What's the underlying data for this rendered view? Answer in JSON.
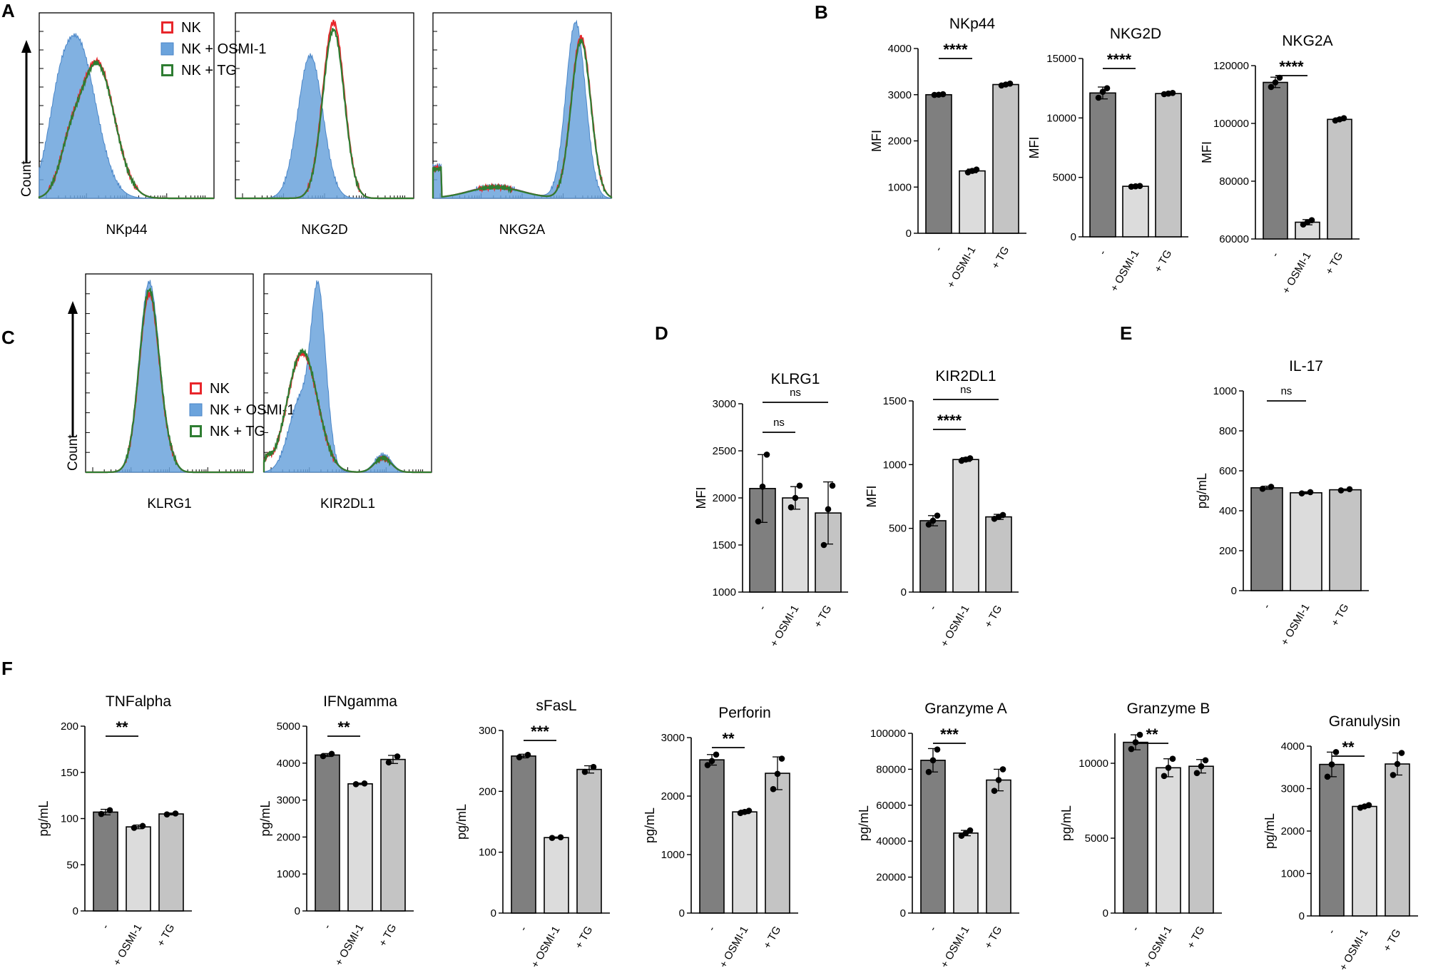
{
  "panel_labels": {
    "A": "A",
    "B": "B",
    "C": "C",
    "D": "D",
    "E": "E",
    "F": "F"
  },
  "histogram_common": {
    "y_label": "Count",
    "legend": [
      {
        "label": "NK",
        "color": "#e8262b",
        "type": "outline"
      },
      {
        "label": "NK + OSMI-1",
        "color": "#6ba3dc",
        "type": "filled"
      },
      {
        "label": "NK + TG",
        "color": "#2e7d32",
        "type": "outline"
      }
    ]
  },
  "categories": [
    "-",
    "+ OSMI-1",
    "+ TG"
  ],
  "colors": {
    "bar_dark": "#7f7f7f",
    "bar_light": "#dcdcdc",
    "bar_mid": "#c4c4c4",
    "fill_blue": "#6ba3dc",
    "red": "#e8262b",
    "green": "#2e7d32"
  },
  "chart_data": [
    {
      "id": "A1",
      "panel": "A",
      "type": "histogram",
      "xlabel": "NKp44",
      "title": "",
      "ylabel": "Count",
      "series": [
        {
          "name": "NK",
          "peak_x": 0.33,
          "peak_height": 0.74
        },
        {
          "name": "NK + OSMI-1",
          "peak_x": 0.22,
          "peak_height": 0.88
        },
        {
          "name": "NK + TG",
          "peak_x": 0.33,
          "peak_height": 0.73
        }
      ]
    },
    {
      "id": "A2",
      "panel": "A",
      "type": "histogram",
      "xlabel": "NKG2D",
      "title": "",
      "series": [
        {
          "name": "NK",
          "peak_x": 0.55,
          "peak_height": 0.95
        },
        {
          "name": "NK + OSMI-1",
          "peak_x": 0.42,
          "peak_height": 0.77
        },
        {
          "name": "NK + TG",
          "peak_x": 0.55,
          "peak_height": 0.91
        }
      ]
    },
    {
      "id": "A3",
      "panel": "A",
      "type": "histogram",
      "xlabel": "NKG2A",
      "title": "",
      "series": [
        {
          "name": "NK",
          "peak_x": 0.83,
          "peak_height": 0.87
        },
        {
          "name": "NK + OSMI-1",
          "peak_x": 0.8,
          "peak_height": 0.95
        },
        {
          "name": "NK + TG",
          "peak_x": 0.83,
          "peak_height": 0.85
        }
      ]
    },
    {
      "id": "B1",
      "panel": "B",
      "type": "bar",
      "title": "NKp44",
      "ylabel": "MFI",
      "ylim": [
        0,
        4000
      ],
      "yticks": [
        0,
        1000,
        2000,
        3000,
        4000
      ],
      "values": [
        3000,
        1350,
        3220
      ],
      "errors": [
        20,
        40,
        25
      ],
      "points": [
        [
          2995,
          3000,
          3010
        ],
        [
          1320,
          1350,
          1380
        ],
        [
          3200,
          3220,
          3240
        ]
      ],
      "sig": [
        {
          "from": 0,
          "to": 1,
          "text": "****"
        }
      ]
    },
    {
      "id": "B2",
      "panel": "B",
      "type": "bar",
      "title": "NKG2D",
      "ylabel": "MFI",
      "ylim": [
        0,
        15000
      ],
      "yticks": [
        0,
        5000,
        10000,
        15000
      ],
      "values": [
        12100,
        4250,
        12050
      ],
      "errors": [
        500,
        60,
        60
      ],
      "points": [
        [
          11700,
          12200,
          12500
        ],
        [
          4220,
          4250,
          4280
        ],
        [
          12000,
          12050,
          12100
        ]
      ],
      "sig": [
        {
          "from": 0,
          "to": 1,
          "text": "****"
        }
      ]
    },
    {
      "id": "B3",
      "panel": "B",
      "type": "bar",
      "title": "NKG2A",
      "ylabel": "MFI",
      "ylim": [
        60000,
        120000
      ],
      "yticks": [
        60000,
        80000,
        100000,
        120000
      ],
      "values": [
        114200,
        65800,
        101400
      ],
      "errors": [
        1800,
        900,
        500
      ],
      "points": [
        [
          112600,
          114200,
          115800
        ],
        [
          65000,
          65800,
          66500
        ],
        [
          101000,
          101400,
          101800
        ]
      ],
      "sig": [
        {
          "from": 0,
          "to": 1,
          "text": "****"
        }
      ]
    },
    {
      "id": "C1",
      "panel": "C",
      "type": "histogram",
      "xlabel": "KLRG1",
      "title": "",
      "ylabel": "Count",
      "series": [
        {
          "name": "NK",
          "peak_x": 0.38,
          "peak_height": 0.9
        },
        {
          "name": "NK + OSMI-1",
          "peak_x": 0.38,
          "peak_height": 0.96
        },
        {
          "name": "NK + TG",
          "peak_x": 0.38,
          "peak_height": 0.92
        }
      ]
    },
    {
      "id": "C2",
      "panel": "C",
      "type": "histogram",
      "xlabel": "KIR2DL1",
      "title": "",
      "series": [
        {
          "name": "NK",
          "peak_x": 0.24,
          "peak_height": 0.6
        },
        {
          "name": "NK + OSMI-1",
          "peak_x": 0.31,
          "peak_height": 0.96
        },
        {
          "name": "NK + TG",
          "peak_x": 0.24,
          "peak_height": 0.61
        }
      ]
    },
    {
      "id": "D1",
      "panel": "D",
      "type": "bar",
      "title": "KLRG1",
      "ylabel": "MFI",
      "ylim": [
        1000,
        3000
      ],
      "yticks": [
        1000,
        1500,
        2000,
        2500,
        3000
      ],
      "values": [
        2100,
        2000,
        1840
      ],
      "errors": [
        360,
        120,
        330
      ],
      "points": [
        [
          1750,
          2120,
          2460
        ],
        [
          1900,
          2000,
          2130
        ],
        [
          1500,
          1880,
          2130
        ]
      ],
      "sig": [
        {
          "from": 0,
          "to": 1,
          "text": "ns"
        },
        {
          "from": 0,
          "to": 2,
          "text": "ns"
        }
      ]
    },
    {
      "id": "D2",
      "panel": "D",
      "type": "bar",
      "title": "KIR2DL1",
      "ylabel": "MFI",
      "ylim": [
        0,
        1500
      ],
      "yticks": [
        0,
        500,
        1000,
        1500
      ],
      "values": [
        560,
        1040,
        590
      ],
      "errors": [
        40,
        15,
        20
      ],
      "points": [
        [
          530,
          560,
          600
        ],
        [
          1030,
          1040,
          1050
        ],
        [
          575,
          590,
          605
        ]
      ],
      "sig": [
        {
          "from": 0,
          "to": 1,
          "text": "****"
        },
        {
          "from": 0,
          "to": 2,
          "text": "ns"
        }
      ]
    },
    {
      "id": "E1",
      "panel": "E",
      "type": "bar",
      "title": "IL-17",
      "ylabel": "pg/mL",
      "ylim": [
        0,
        1000
      ],
      "yticks": [
        0,
        200,
        400,
        600,
        800,
        1000
      ],
      "values": [
        515,
        490,
        505
      ],
      "errors": [
        8,
        5,
        4
      ],
      "points": [
        [
          510,
          520
        ],
        [
          487,
          493
        ],
        [
          502,
          508
        ]
      ],
      "sig": [
        {
          "from": 0,
          "to": 1,
          "text": "ns"
        }
      ]
    },
    {
      "id": "F1",
      "panel": "F",
      "type": "bar",
      "title": "TNFalpha",
      "ylabel": "pg/mL",
      "ylim": [
        0,
        200
      ],
      "yticks": [
        0,
        50,
        100,
        150,
        200
      ],
      "values": [
        107,
        91,
        105
      ],
      "errors": [
        3,
        2,
        1
      ],
      "points": [
        [
          105,
          109
        ],
        [
          90,
          92
        ],
        [
          104.5,
          105.5
        ]
      ],
      "sig": [
        {
          "from": 0,
          "to": 1,
          "text": "**"
        }
      ]
    },
    {
      "id": "F2",
      "panel": "F",
      "type": "bar",
      "title": "IFNgamma",
      "ylabel": "pg/mL",
      "ylim": [
        0,
        5000
      ],
      "yticks": [
        0,
        1000,
        2000,
        3000,
        4000,
        5000
      ],
      "values": [
        4220,
        3440,
        4100
      ],
      "errors": [
        40,
        20,
        110
      ],
      "points": [
        [
          4190,
          4250
        ],
        [
          3430,
          3450
        ],
        [
          4020,
          4180
        ]
      ],
      "sig": [
        {
          "from": 0,
          "to": 1,
          "text": "**"
        }
      ]
    },
    {
      "id": "F3",
      "panel": "F",
      "type": "bar",
      "title": "sFasL",
      "ylabel": "pg/mL",
      "ylim": [
        0,
        300
      ],
      "yticks": [
        0,
        100,
        200,
        300
      ],
      "values": [
        258,
        124,
        236
      ],
      "errors": [
        3,
        1,
        6
      ],
      "points": [
        [
          256,
          260
        ],
        [
          123.5,
          124.5
        ],
        [
          232,
          240
        ]
      ],
      "sig": [
        {
          "from": 0,
          "to": 1,
          "text": "***"
        }
      ]
    },
    {
      "id": "F4",
      "panel": "F",
      "type": "bar",
      "title": "Perforin",
      "ylabel": "pg/mL",
      "ylim": [
        0,
        3000
      ],
      "yticks": [
        0,
        1000,
        2000,
        3000
      ],
      "values": [
        2620,
        1730,
        2390
      ],
      "errors": [
        90,
        30,
        280
      ],
      "points": [
        [
          2530,
          2600,
          2710
        ],
        [
          1710,
          1730,
          1750
        ],
        [
          2120,
          2380,
          2640
        ]
      ],
      "sig": [
        {
          "from": 0,
          "to": 1,
          "text": "**"
        }
      ]
    },
    {
      "id": "F5",
      "panel": "F",
      "type": "bar",
      "title": "Granzyme A",
      "ylabel": "pg/mL",
      "ylim": [
        0,
        100000
      ],
      "yticks": [
        0,
        20000,
        40000,
        60000,
        80000,
        100000
      ],
      "values": [
        85000,
        44500,
        74000
      ],
      "errors": [
        6500,
        1500,
        6000
      ],
      "points": [
        [
          78500,
          85000,
          91000
        ],
        [
          43000,
          44500,
          46000
        ],
        [
          68000,
          74000,
          80000
        ]
      ],
      "sig": [
        {
          "from": 0,
          "to": 1,
          "text": "***"
        }
      ]
    },
    {
      "id": "F6",
      "panel": "F",
      "type": "bar",
      "title": "Granzyme B",
      "ylabel": "pg/mL",
      "ylim": [
        0,
        12000
      ],
      "yticks": [
        0,
        5000,
        10000
      ],
      "values": [
        11400,
        9700,
        9800
      ],
      "errors": [
        500,
        600,
        450
      ],
      "points": [
        [
          10950,
          11400,
          11900
        ],
        [
          9150,
          9700,
          10300
        ],
        [
          9350,
          9800,
          10200
        ]
      ],
      "sig": [
        {
          "from": 0,
          "to": 1,
          "text": "**"
        }
      ]
    },
    {
      "id": "F7",
      "panel": "F",
      "type": "bar",
      "title": "Granulysin",
      "ylabel": "pg/mL",
      "ylim": [
        0,
        4000
      ],
      "yticks": [
        0,
        1000,
        2000,
        3000,
        4000
      ],
      "values": [
        3570,
        2580,
        3580
      ],
      "errors": [
        290,
        30,
        260
      ],
      "points": [
        [
          3280,
          3570,
          3860
        ],
        [
          2550,
          2580,
          2610
        ],
        [
          3320,
          3580,
          3840
        ]
      ],
      "sig": [
        {
          "from": 0,
          "to": 1,
          "text": "**"
        }
      ]
    }
  ]
}
